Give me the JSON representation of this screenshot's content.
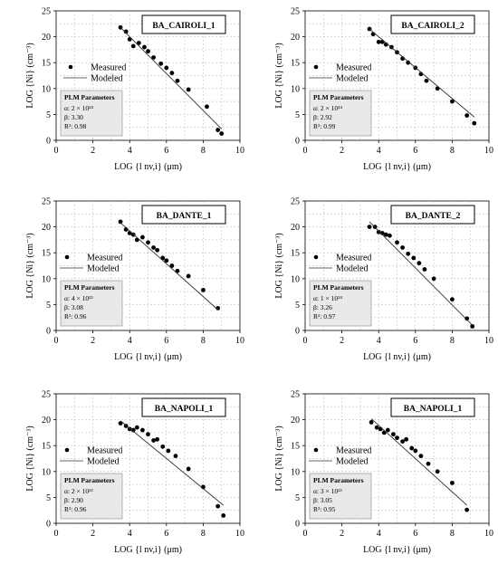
{
  "chart_data": [
    {
      "type": "scatter",
      "title": "BA_CAIROLI_1",
      "xlabel": "LOG {l nv,i} (μm)",
      "ylabel": "LOG {Ni} (cm⁻³)",
      "xlim": [
        0,
        10
      ],
      "ylim": [
        0,
        25
      ],
      "xticks": [
        "0",
        "2",
        "4",
        "6",
        "8",
        "10"
      ],
      "yticks": [
        "0",
        "5",
        "10",
        "15",
        "20",
        "25"
      ],
      "grid": true,
      "legend": {
        "placement": "middle-right",
        "entries": [
          "Measured",
          "Modeled"
        ]
      },
      "params": {
        "heading": "PLM Parameters",
        "alpha": "α: 2 × 10²⁴",
        "beta": "β: 3.30",
        "r2": "R²: 0.98"
      },
      "series": [
        {
          "name": "Measured",
          "kind": "points",
          "x": [
            3.5,
            3.8,
            4.0,
            4.2,
            4.5,
            4.8,
            5.0,
            5.3,
            5.7,
            6.0,
            6.3,
            6.6,
            7.2,
            8.2,
            8.8,
            9.0
          ],
          "y": [
            21.8,
            21.0,
            19.5,
            18.2,
            18.8,
            18.0,
            17.2,
            16.0,
            14.8,
            14.0,
            13.0,
            11.5,
            9.8,
            6.5,
            2.0,
            1.3
          ]
        },
        {
          "name": "Modeled",
          "kind": "line",
          "x": [
            3.5,
            9.0
          ],
          "y": [
            21.8,
            2.2
          ]
        }
      ]
    },
    {
      "type": "scatter",
      "title": "BA_CAIROLI_2",
      "xlabel": "LOG {l nv,i} (μm)",
      "ylabel": "LOG {Ni} (cm⁻³)",
      "xlim": [
        0,
        10
      ],
      "ylim": [
        0,
        25
      ],
      "xticks": [
        "0",
        "2",
        "4",
        "6",
        "8",
        "10"
      ],
      "yticks": [
        "0",
        "5",
        "10",
        "15",
        "20",
        "25"
      ],
      "grid": true,
      "legend": {
        "placement": "middle-left",
        "entries": [
          "Measured",
          "Modeled"
        ]
      },
      "params": {
        "heading": "PLM Parameters",
        "alpha": "α: 2 × 10²⁴",
        "beta": "β: 2.92",
        "r2": "R²: 0.99"
      },
      "series": [
        {
          "name": "Measured",
          "kind": "points",
          "x": [
            3.5,
            3.7,
            4.0,
            4.2,
            4.4,
            4.7,
            5.0,
            5.3,
            5.6,
            6.0,
            6.3,
            6.6,
            7.2,
            8.0,
            8.8,
            9.2
          ],
          "y": [
            21.5,
            20.5,
            19.0,
            19.0,
            18.5,
            18.0,
            17.0,
            15.8,
            15.0,
            14.0,
            12.8,
            11.5,
            10.0,
            7.5,
            4.8,
            3.3
          ]
        },
        {
          "name": "Modeled",
          "kind": "line",
          "x": [
            3.5,
            9.2
          ],
          "y": [
            21.5,
            4.5
          ]
        }
      ]
    },
    {
      "type": "scatter",
      "title": "BA_DANTE_1",
      "xlabel": "LOG {l nv,i} (μm)",
      "ylabel": "LOG {Ni} (cm⁻³)",
      "xlim": [
        0,
        10
      ],
      "ylim": [
        0,
        25
      ],
      "xticks": [
        "0",
        "2",
        "4",
        "6",
        "8",
        "10"
      ],
      "yticks": [
        "0",
        "5",
        "10",
        "15",
        "20",
        "25"
      ],
      "grid": true,
      "legend": {
        "placement": "middle-left",
        "entries": [
          "Measured",
          "Modeled"
        ]
      },
      "params": {
        "heading": "PLM Parameters",
        "alpha": "α: 4 × 10²³",
        "beta": "β: 3.08",
        "r2": "R²: 0.96"
      },
      "series": [
        {
          "name": "Measured",
          "kind": "points",
          "x": [
            3.5,
            3.8,
            4.0,
            4.2,
            4.4,
            4.7,
            5.0,
            5.3,
            5.5,
            5.8,
            6.0,
            6.3,
            6.6,
            7.2,
            8.0,
            8.8
          ],
          "y": [
            21.0,
            19.5,
            18.8,
            18.5,
            17.5,
            18.0,
            17.0,
            16.0,
            15.5,
            14.0,
            13.5,
            12.5,
            11.5,
            10.5,
            7.8,
            4.3
          ]
        },
        {
          "name": "Modeled",
          "kind": "line",
          "x": [
            3.5,
            8.8
          ],
          "y": [
            20.8,
            4.0
          ]
        }
      ]
    },
    {
      "type": "scatter",
      "title": "BA_DANTE_2",
      "xlabel": "LOG {l nv,i} (μm)",
      "ylabel": "LOG {Ni} (cm⁻³)",
      "xlim": [
        0,
        10
      ],
      "ylim": [
        0,
        25
      ],
      "xticks": [
        "0",
        "2",
        "4",
        "6",
        "8",
        "10"
      ],
      "yticks": [
        "0",
        "5",
        "10",
        "15",
        "20",
        "25"
      ],
      "grid": true,
      "legend": {
        "placement": "middle-left",
        "entries": [
          "Measured",
          "Modeled"
        ]
      },
      "params": {
        "heading": "PLM Parameters",
        "alpha": "α: 1 × 10²⁴",
        "beta": "β: 3.26",
        "r2": "R²: 0.97"
      },
      "series": [
        {
          "name": "Measured",
          "kind": "points",
          "x": [
            3.5,
            3.8,
            4.0,
            4.2,
            4.4,
            4.6,
            5.0,
            5.3,
            5.6,
            5.9,
            6.2,
            6.5,
            7.0,
            8.0,
            8.8,
            9.1
          ],
          "y": [
            20.0,
            20.0,
            19.0,
            18.8,
            18.5,
            18.3,
            17.0,
            16.0,
            14.8,
            14.0,
            13.0,
            11.8,
            10.0,
            6.0,
            2.3,
            0.8
          ]
        },
        {
          "name": "Modeled",
          "kind": "line",
          "x": [
            3.5,
            9.1
          ],
          "y": [
            21.0,
            1.0
          ]
        }
      ]
    },
    {
      "type": "scatter",
      "title": "BA_NAPOLI_1",
      "xlabel": "LOG {l nv,i} (μm)",
      "ylabel": "LOG {Ni} (cm⁻³)",
      "xlim": [
        0,
        10
      ],
      "ylim": [
        0,
        25
      ],
      "xticks": [
        "0",
        "2",
        "4",
        "6",
        "8",
        "10"
      ],
      "yticks": [
        "0",
        "5",
        "10",
        "15",
        "20",
        "25"
      ],
      "grid": true,
      "legend": {
        "placement": "middle-left",
        "entries": [
          "Measured",
          "Modeled"
        ]
      },
      "params": {
        "heading": "PLM Parameters",
        "alpha": "α: 2 × 10²³",
        "beta": "β: 2.90",
        "r2": "R²: 0.96"
      },
      "series": [
        {
          "name": "Measured",
          "kind": "points",
          "x": [
            3.5,
            3.8,
            4.0,
            4.2,
            4.4,
            4.7,
            5.0,
            5.3,
            5.5,
            5.8,
            6.1,
            6.5,
            7.2,
            8.0,
            8.8,
            9.1
          ],
          "y": [
            19.3,
            18.8,
            18.2,
            18.0,
            18.5,
            18.0,
            17.2,
            16.0,
            16.2,
            14.8,
            14.0,
            13.0,
            10.5,
            7.0,
            3.3,
            1.5
          ]
        },
        {
          "name": "Modeled",
          "kind": "line",
          "x": [
            3.5,
            9.1
          ],
          "y": [
            19.8,
            3.5
          ]
        }
      ]
    },
    {
      "type": "scatter",
      "title": "BA_NAPOLI_1",
      "xlabel": "LOG {l nv,i} (μm)",
      "ylabel": "LOG {Ni} (cm⁻³)",
      "xlim": [
        0,
        10
      ],
      "ylim": [
        0,
        25
      ],
      "xticks": [
        "0",
        "2",
        "4",
        "6",
        "8",
        "10"
      ],
      "yticks": [
        "0",
        "5",
        "10",
        "15",
        "20",
        "25"
      ],
      "grid": true,
      "legend": {
        "placement": "middle-left",
        "entries": [
          "Measured",
          "Modeled"
        ]
      },
      "params": {
        "heading": "PLM Parameters",
        "alpha": "α: 3 × 10²³",
        "beta": "β: 3.05",
        "r2": "R²: 0.95"
      },
      "series": [
        {
          "name": "Measured",
          "kind": "points",
          "x": [
            3.6,
            3.9,
            4.1,
            4.3,
            4.5,
            4.8,
            5.0,
            5.3,
            5.5,
            5.8,
            6.0,
            6.3,
            6.7,
            7.2,
            8.0,
            8.8
          ],
          "y": [
            19.5,
            18.5,
            18.2,
            17.5,
            18.0,
            17.2,
            16.5,
            15.8,
            16.2,
            14.5,
            14.0,
            13.0,
            11.5,
            10.0,
            7.8,
            2.6
          ]
        },
        {
          "name": "Modeled",
          "kind": "line",
          "x": [
            3.6,
            8.8
          ],
          "y": [
            20.2,
            3.5
          ]
        }
      ]
    }
  ]
}
